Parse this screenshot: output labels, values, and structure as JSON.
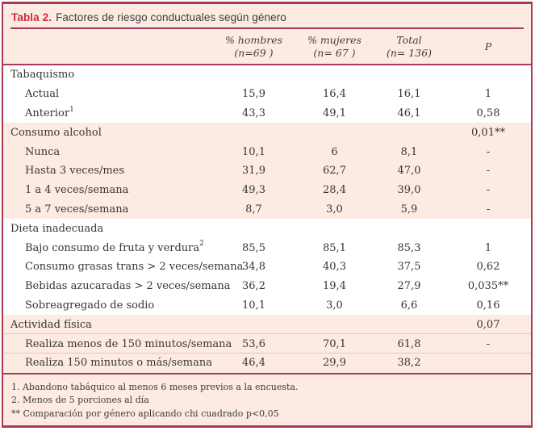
{
  "colors": {
    "panel_bg": "#fdeae3",
    "white_band": "#ffffff",
    "border": "#a93b55",
    "title_accent": "#d02846",
    "text": "#3c3c3c"
  },
  "table": {
    "title": {
      "label": "Tabla 2.",
      "text": "Factores de riesgo conductuales según género"
    },
    "header_cols": [
      {
        "line1": "% hombres",
        "line2": "(n=69 )"
      },
      {
        "line1": "% mujeres",
        "line2": "(n= 67 )"
      },
      {
        "line1": "Total",
        "line2": "(n= 136)"
      },
      {
        "line1": "P",
        "line2": ""
      }
    ],
    "rows": [
      {
        "label": "Tabaquismo",
        "sup": "",
        "indent": false,
        "band": "white",
        "values": [
          "",
          "",
          "",
          ""
        ]
      },
      {
        "label": "Actual",
        "sup": "",
        "indent": true,
        "band": "white",
        "values": [
          "15,9",
          "16,4",
          "16,1",
          "1"
        ]
      },
      {
        "label": "Anterior",
        "sup": "1",
        "indent": true,
        "band": "white",
        "values": [
          "43,3",
          "49,1",
          "46,1",
          "0,58"
        ]
      },
      {
        "label": "Consumo alcohol",
        "sup": "",
        "indent": false,
        "band": "pink",
        "values": [
          "",
          "",
          "",
          "0,01**"
        ]
      },
      {
        "label": "Nunca",
        "sup": "",
        "indent": true,
        "band": "pink",
        "values": [
          "10,1",
          "6",
          "8,1",
          "-"
        ]
      },
      {
        "label": "Hasta 3 veces/mes",
        "sup": "",
        "indent": true,
        "band": "pink",
        "values": [
          "31,9",
          "62,7",
          "47,0",
          "-"
        ]
      },
      {
        "label": "1 a 4 veces/semana",
        "sup": "",
        "indent": true,
        "band": "pink",
        "values": [
          "49,3",
          "28,4",
          "39,0",
          "-"
        ]
      },
      {
        "label": "5 a 7 veces/semana",
        "sup": "",
        "indent": true,
        "band": "pink",
        "values": [
          "8,7",
          "3,0",
          "5,9",
          "-"
        ]
      },
      {
        "label": "Dieta inadecuada",
        "sup": "",
        "indent": false,
        "band": "white",
        "values": [
          "",
          "",
          "",
          ""
        ]
      },
      {
        "label": "Bajo consumo de fruta y verdura",
        "sup": "2",
        "indent": true,
        "band": "white",
        "values": [
          "85,5",
          "85,1",
          "85,3",
          "1"
        ]
      },
      {
        "label": "Consumo  grasas trans > 2 veces/semana",
        "sup": "",
        "indent": true,
        "band": "white",
        "values": [
          "34,8",
          "40,3",
          "37,5",
          "0,62"
        ]
      },
      {
        "label": "Bebidas azucaradas > 2 veces/semana",
        "sup": "",
        "indent": true,
        "band": "white",
        "values": [
          "36,2",
          "19,4",
          "27,9",
          "0,035**"
        ]
      },
      {
        "label": "Sobreagregado de sodio",
        "sup": "",
        "indent": true,
        "band": "white",
        "values": [
          "10,1",
          "3,0",
          "6,6",
          "0,16"
        ]
      },
      {
        "label": "Actividad física",
        "sup": "",
        "indent": false,
        "band": "pink",
        "divider": true,
        "values": [
          "",
          "",
          "",
          "0,07"
        ]
      },
      {
        "label": "Realiza menos de 150 minutos/semana",
        "sup": "",
        "indent": true,
        "band": "pink",
        "divider": true,
        "values": [
          "53,6",
          "70,1",
          "61,8",
          "-"
        ]
      },
      {
        "label": "Realiza 150 minutos o más/semana",
        "sup": "",
        "indent": true,
        "band": "pink",
        "values": [
          "46,4",
          "29,9",
          "38,2",
          ""
        ]
      }
    ],
    "footnotes": [
      "1. Abandono tabáquico al menos 6 meses previos a la encuesta.",
      "2. Menos de 5 porciones al día",
      "** Comparación por género aplicando chi cuadrado p<0,05"
    ]
  }
}
